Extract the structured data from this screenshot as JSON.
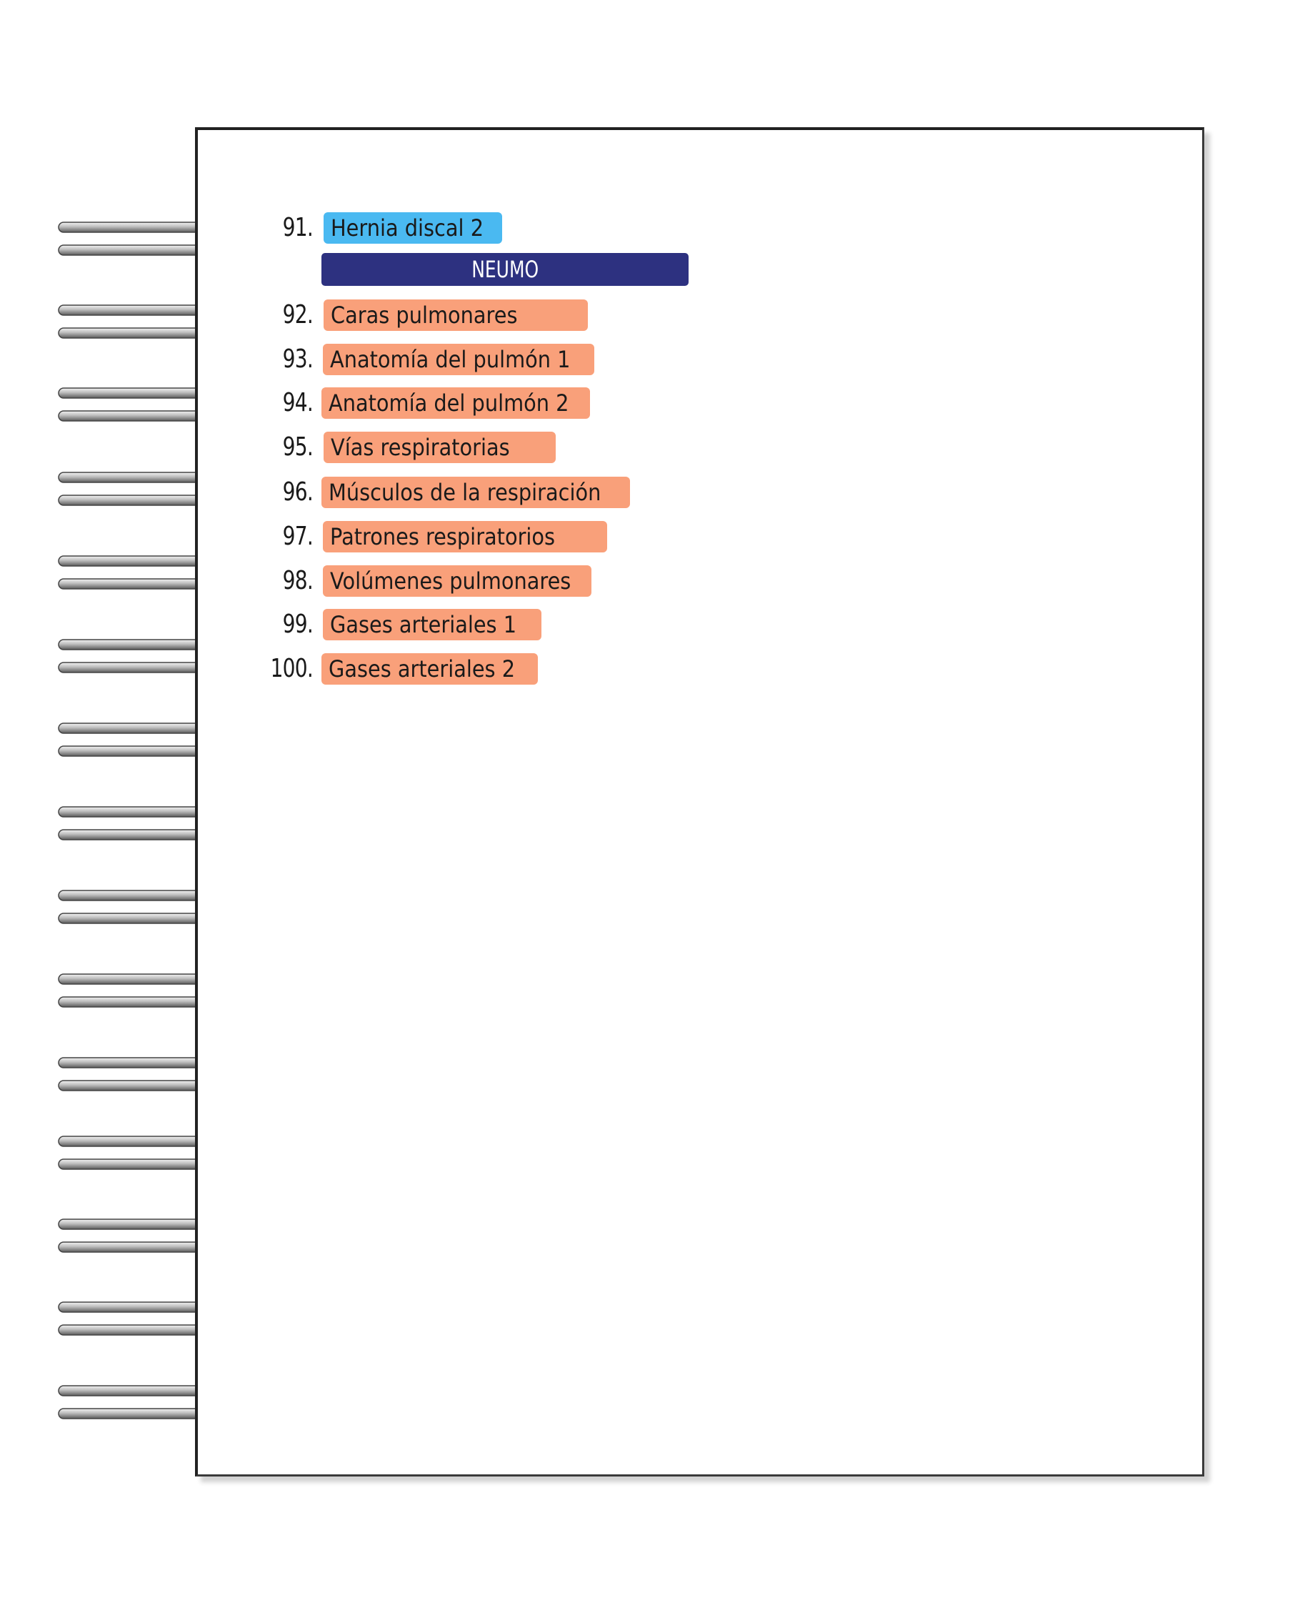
{
  "colors": {
    "highlight_blue": "#4ab9f1",
    "highlight_orange": "#f9a07a",
    "section_navy": "#2d3180"
  },
  "entries": [
    {
      "number": "91.",
      "label": "Hernia discal 2",
      "color": "blue"
    },
    {
      "number": "92.",
      "label": "Caras pulmonares",
      "color": "orange"
    },
    {
      "number": "93.",
      "label": "Anatomía del pulmón 1",
      "color": "orange"
    },
    {
      "number": "94.",
      "label": "Anatomía del pulmón 2",
      "color": "orange"
    },
    {
      "number": "95.",
      "label": "Vías respiratorias",
      "color": "orange"
    },
    {
      "number": "96.",
      "label": "Músculos de la respiración",
      "color": "orange"
    },
    {
      "number": "97.",
      "label": "Patrones respiratorios",
      "color": "orange"
    },
    {
      "number": "98.",
      "label": "Volúmenes pulmonares",
      "color": "orange"
    },
    {
      "number": "99.",
      "label": "Gases arteriales 1",
      "color": "orange"
    },
    {
      "number": "100.",
      "label": "Gases arteriales 2",
      "color": "orange"
    }
  ],
  "section": {
    "title": "NEUMO"
  }
}
